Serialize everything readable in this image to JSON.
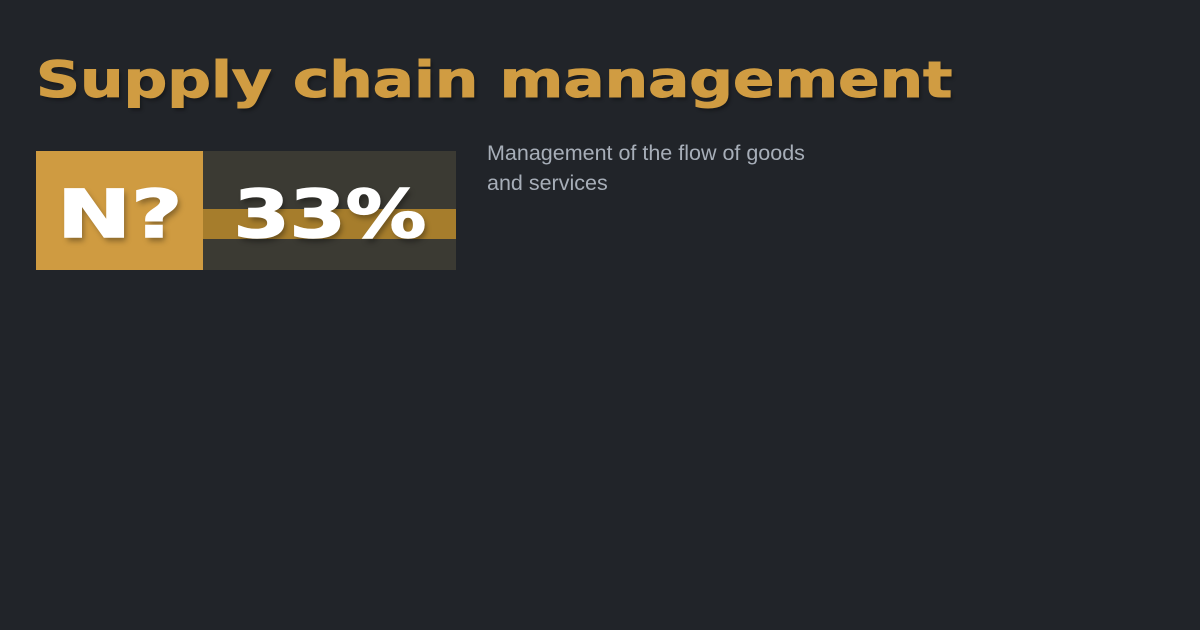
{
  "colors": {
    "background": "#212429",
    "gold": "#cf9b41",
    "dark_olive": "#3b3a33",
    "stripe_gold": "#a67d2c",
    "title_gold": "#d09c42",
    "description_gray": "#a7aeb8",
    "badge_text_white": "#ffffff"
  },
  "title": {
    "text": "Supply chain management"
  },
  "badge": {
    "logo_text": "N?",
    "percent_value": "33%"
  },
  "description": {
    "text": "Management of the flow of goods\nand services"
  }
}
